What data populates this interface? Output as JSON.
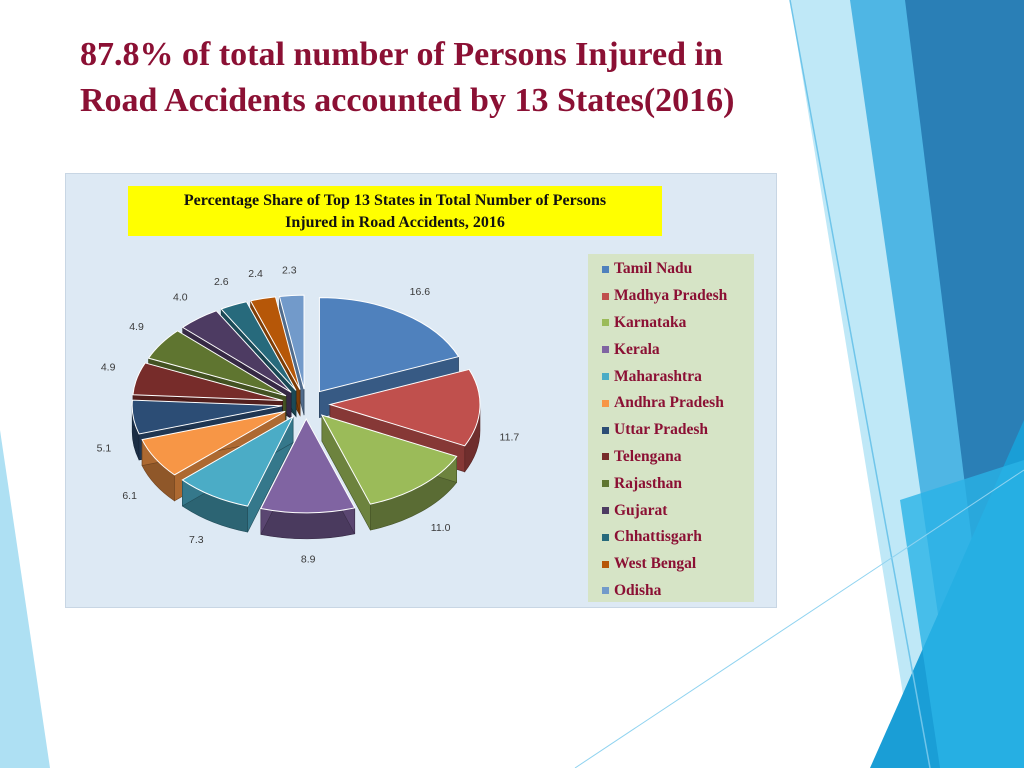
{
  "slide": {
    "title_lines": [
      "87.8% of total number of Persons Injured in",
      "Road Accidents accounted by 13 States(2016)"
    ]
  },
  "theme": {
    "title_color": "#8b1034",
    "accent_blue": "#2f88c8"
  },
  "chart_data": {
    "type": "pie",
    "title_lines": [
      "Percentage Share of Top 13 States in Total Number of Persons",
      "Injured in Road Accidents, 2016"
    ],
    "unit": "%",
    "exploded": true,
    "style": "3d",
    "legend_position": "right",
    "slices": [
      {
        "label": "Tamil Nadu",
        "value": 16.6,
        "color": "#4f81bd"
      },
      {
        "label": "Madhya Pradesh",
        "value": 11.7,
        "color": "#c0504d"
      },
      {
        "label": "Karnataka",
        "value": 11.0,
        "color": "#9bbb59"
      },
      {
        "label": "Kerala",
        "value": 8.9,
        "color": "#8064a2"
      },
      {
        "label": "Maharashtra",
        "value": 7.3,
        "color": "#4bacc6"
      },
      {
        "label": "Andhra Pradesh",
        "value": 6.1,
        "color": "#f79646"
      },
      {
        "label": "Uttar Pradesh",
        "value": 5.1,
        "color": "#2c4d75"
      },
      {
        "label": "Telengana",
        "value": 4.9,
        "color": "#772c2a"
      },
      {
        "label": "Rajasthan",
        "value": 4.9,
        "color": "#5f7530"
      },
      {
        "label": "Gujarat",
        "value": 4.0,
        "color": "#4d3b62"
      },
      {
        "label": "Chhattisgarh",
        "value": 2.6,
        "color": "#276a7c"
      },
      {
        "label": "West Bengal",
        "value": 2.4,
        "color": "#b65708"
      },
      {
        "label": "Odisha",
        "value": 2.3,
        "color": "#729aca"
      }
    ]
  }
}
